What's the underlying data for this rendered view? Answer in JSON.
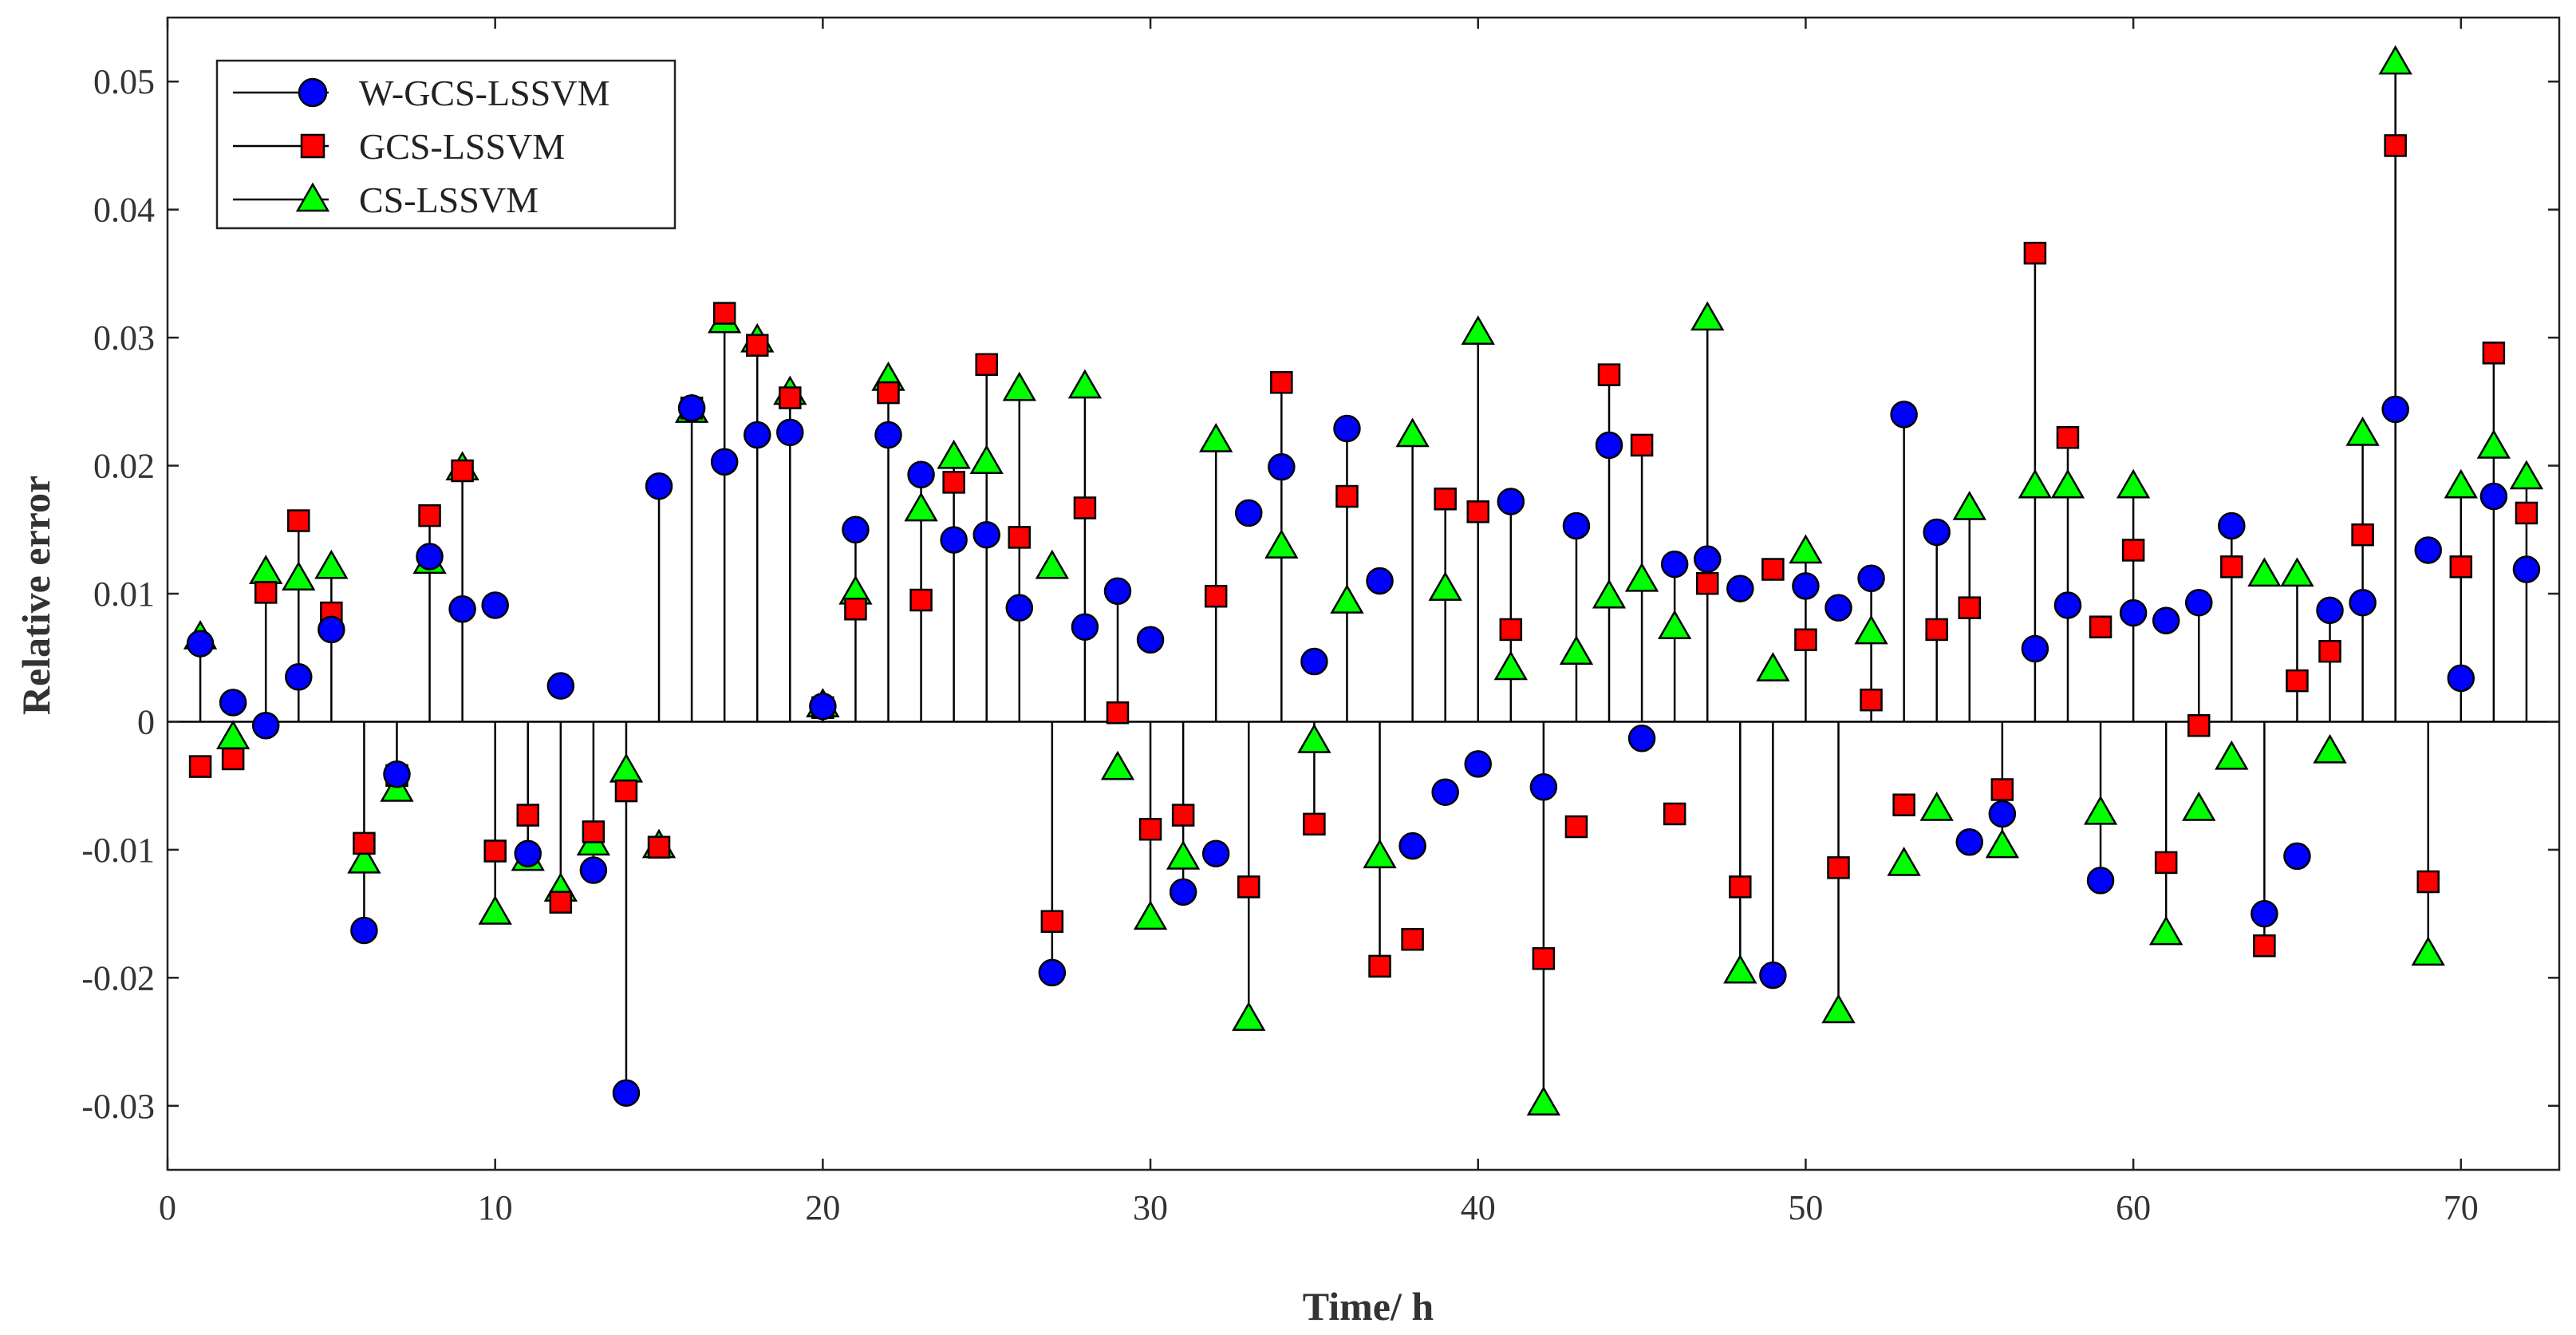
{
  "chart_data": {
    "type": "stem",
    "title": "",
    "xlabel": "Time/ h",
    "ylabel": "Relative error",
    "xlim": [
      0,
      73
    ],
    "ylim": [
      -0.035,
      0.055
    ],
    "xticks": [
      0,
      10,
      20,
      30,
      40,
      50,
      60,
      70
    ],
    "yticks": [
      -0.03,
      -0.02,
      -0.01,
      0,
      0.01,
      0.02,
      0.03,
      0.04,
      0.05
    ],
    "ytick_labels": [
      "-0.03",
      "-0.02",
      "-0.01",
      "0",
      "0.01",
      "0.02",
      "0.03",
      "0.04",
      "0.05"
    ],
    "legend_position": "top-left",
    "series": [
      {
        "name": "W-GCS-LSSVM",
        "marker": "circle",
        "color": "#0000ff",
        "x": [
          1,
          2,
          3,
          4,
          5,
          6,
          7,
          8,
          9,
          10,
          11,
          12,
          13,
          14,
          15,
          16,
          17,
          18,
          19,
          20,
          21,
          22,
          23,
          24,
          25,
          26,
          27,
          28,
          29,
          30,
          31,
          32,
          33,
          34,
          35,
          36,
          37,
          38,
          39,
          40,
          41,
          42,
          43,
          44,
          45,
          46,
          47,
          48,
          49,
          50,
          51,
          52,
          53,
          54,
          55,
          56,
          57,
          58,
          59,
          60,
          61,
          62,
          63,
          64,
          65,
          66,
          67,
          68,
          69,
          70,
          71,
          72
        ],
        "values": [
          0.0061,
          0.0015,
          -0.0003,
          0.0035,
          0.0072,
          -0.0163,
          -0.0041,
          0.0129,
          0.0088,
          0.0091,
          -0.0103,
          0.0028,
          -0.0116,
          -0.029,
          0.0184,
          0.0245,
          0.0203,
          0.0224,
          0.0226,
          0.0012,
          0.015,
          0.0224,
          0.0193,
          0.0142,
          0.0146,
          0.0089,
          -0.0196,
          0.0074,
          0.0102,
          0.0064,
          -0.0133,
          -0.0103,
          0.0163,
          0.0199,
          0.0047,
          0.0229,
          0.011,
          -0.0097,
          -0.0055,
          -0.0033,
          0.0172,
          -0.0051,
          0.0153,
          0.0216,
          -0.0013,
          0.0123,
          0.0127,
          0.0104,
          -0.0198,
          0.0106,
          0.0089,
          0.0112,
          0.024,
          0.0148,
          -0.0094,
          -0.0072,
          0.0057,
          0.0091,
          -0.0124,
          0.0085,
          0.0079,
          0.0093,
          0.0153,
          -0.015,
          -0.0105,
          0.0087,
          0.0093,
          0.0244,
          0.0134,
          0.0034,
          0.0176,
          0.0119
        ]
      },
      {
        "name": "GCS-LSSVM",
        "marker": "square",
        "color": "#ff0000",
        "x": [
          1,
          2,
          3,
          4,
          5,
          6,
          7,
          8,
          9,
          10,
          11,
          12,
          13,
          14,
          15,
          16,
          17,
          18,
          19,
          20,
          21,
          22,
          23,
          24,
          25,
          26,
          27,
          28,
          29,
          30,
          31,
          32,
          33,
          34,
          35,
          36,
          37,
          38,
          39,
          40,
          41,
          42,
          43,
          44,
          45,
          46,
          47,
          48,
          49,
          50,
          51,
          52,
          53,
          54,
          55,
          56,
          57,
          58,
          59,
          60,
          61,
          62,
          63,
          64,
          65,
          66,
          67,
          68,
          69,
          70,
          71,
          72
        ],
        "values": [
          -0.0035,
          -0.0029,
          0.0101,
          0.0157,
          0.0085,
          -0.0095,
          -0.0042,
          0.0161,
          0.0196,
          -0.0101,
          -0.0073,
          -0.0141,
          -0.0086,
          -0.0054,
          -0.0098,
          0.0245,
          0.0319,
          0.0294,
          0.0253,
          0.0011,
          0.0088,
          0.0257,
          0.0095,
          0.0187,
          0.0279,
          0.0144,
          -0.0156,
          0.0167,
          0.0007,
          -0.0084,
          -0.0073,
          0.0098,
          -0.0129,
          0.0265,
          -0.008,
          0.0176,
          -0.0191,
          -0.017,
          0.0174,
          0.0164,
          0.0072,
          -0.0185,
          -0.0082,
          0.0271,
          0.0216,
          -0.0072,
          0.0108,
          -0.0129,
          0.0119,
          0.0064,
          -0.0114,
          0.0017,
          -0.0065,
          0.0072,
          0.0089,
          -0.0053,
          0.0366,
          0.0222,
          0.0074,
          0.0134,
          -0.011,
          -0.0003,
          0.0121,
          -0.0175,
          0.0032,
          0.0055,
          0.0146,
          0.045,
          -0.0125,
          0.0121,
          0.0288,
          0.0163
        ]
      },
      {
        "name": "CS-LSSVM",
        "marker": "triangle",
        "color": "#00ff00",
        "x": [
          1,
          2,
          3,
          4,
          5,
          6,
          7,
          8,
          9,
          10,
          11,
          12,
          13,
          14,
          15,
          16,
          17,
          18,
          19,
          20,
          21,
          22,
          23,
          24,
          25,
          26,
          27,
          28,
          29,
          30,
          31,
          32,
          33,
          34,
          35,
          36,
          37,
          38,
          39,
          40,
          41,
          42,
          43,
          44,
          45,
          46,
          47,
          48,
          49,
          50,
          51,
          52,
          53,
          54,
          55,
          56,
          57,
          58,
          59,
          60,
          61,
          62,
          63,
          64,
          65,
          66,
          67,
          68,
          69,
          70,
          71,
          72
        ],
        "values": [
          0.0066,
          -0.0012,
          0.0117,
          0.0112,
          0.0121,
          -0.0109,
          -0.0053,
          0.0125,
          0.0198,
          -0.0149,
          -0.0107,
          -0.0131,
          -0.0095,
          -0.0038,
          -0.0097,
          0.0243,
          0.0313,
          0.0298,
          0.0257,
          0.0013,
          0.0101,
          0.0268,
          0.0166,
          0.0207,
          0.0203,
          0.026,
          0.0121,
          0.0262,
          -0.0036,
          -0.0153,
          -0.0106,
          0.022,
          -0.0232,
          0.0137,
          -0.0015,
          0.0094,
          -0.0105,
          0.0224,
          0.0104,
          0.0304,
          0.0042,
          -0.0298,
          0.0054,
          0.0098,
          0.0111,
          0.0074,
          0.0315,
          -0.0195,
          0.0041,
          0.0133,
          -0.0226,
          0.007,
          -0.0111,
          -0.0068,
          0.0167,
          -0.0097,
          0.0184,
          0.0184,
          -0.0071,
          0.0184,
          -0.0165,
          -0.0068,
          -0.0028,
          0.0115,
          0.0115,
          -0.0023,
          0.0225,
          0.0515,
          -0.0181,
          0.0184,
          0.0215,
          0.0191
        ]
      }
    ]
  }
}
